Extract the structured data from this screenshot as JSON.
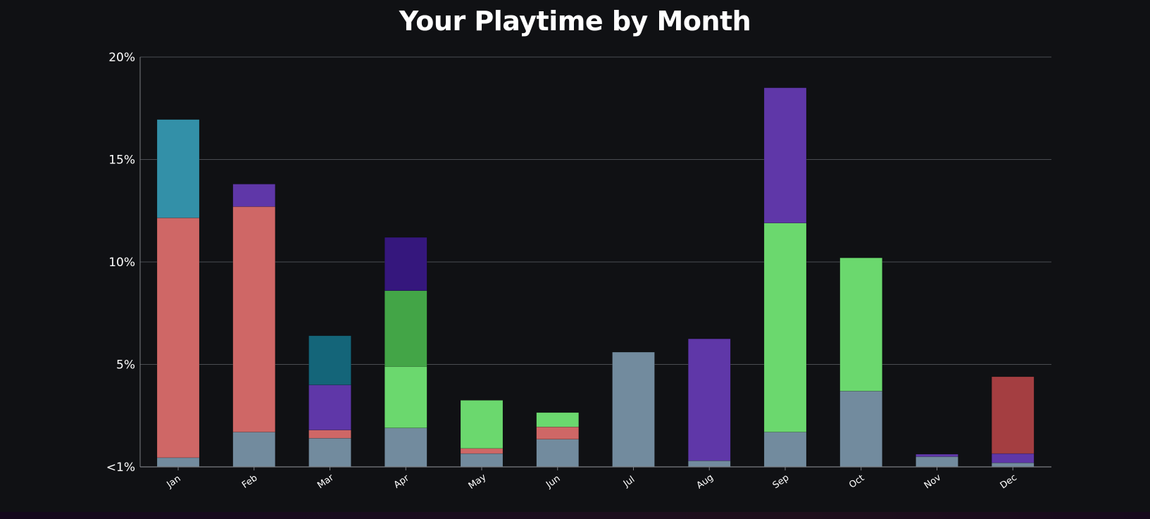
{
  "chart_data": {
    "type": "bar",
    "stacked": true,
    "title": "Your Playtime by Month",
    "xlabel": "",
    "ylabel": "",
    "ylim": [
      0,
      20
    ],
    "y_ticks": [
      {
        "value": 0,
        "label": "<1%"
      },
      {
        "value": 5,
        "label": "5%"
      },
      {
        "value": 10,
        "label": "10%"
      },
      {
        "value": 15,
        "label": "15%"
      },
      {
        "value": 20,
        "label": "20%"
      }
    ],
    "grid": true,
    "legend": "none",
    "categories": [
      "Jan",
      "Feb",
      "Mar",
      "Apr",
      "May",
      "Jun",
      "Jul",
      "Aug",
      "Sep",
      "Oct",
      "Nov",
      "Dec"
    ],
    "stacks": [
      [
        {
          "value": 0.45,
          "color": "#728b9e"
        },
        {
          "value": 11.7,
          "color": "#cf6766"
        },
        {
          "value": 4.8,
          "color": "#3390a8"
        }
      ],
      [
        {
          "value": 1.7,
          "color": "#728b9e"
        },
        {
          "value": 11.0,
          "color": "#cf6766"
        },
        {
          "value": 1.1,
          "color": "#5f37a8"
        }
      ],
      [
        {
          "value": 1.4,
          "color": "#728b9e"
        },
        {
          "value": 0.4,
          "color": "#cf6766"
        },
        {
          "value": 2.2,
          "color": "#5f37a8"
        },
        {
          "value": 2.4,
          "color": "#146579"
        }
      ],
      [
        {
          "value": 1.9,
          "color": "#728b9e"
        },
        {
          "value": 3.0,
          "color": "#6bd86e"
        },
        {
          "value": 3.7,
          "color": "#43a547"
        },
        {
          "value": 2.6,
          "color": "#35177d"
        }
      ],
      [
        {
          "value": 0.65,
          "color": "#728b9e"
        },
        {
          "value": 0.25,
          "color": "#cf6766"
        },
        {
          "value": 2.35,
          "color": "#6bd86e"
        }
      ],
      [
        {
          "value": 1.35,
          "color": "#728b9e"
        },
        {
          "value": 0.6,
          "color": "#cf6766"
        },
        {
          "value": 0.7,
          "color": "#6bd86e"
        }
      ],
      [
        {
          "value": 5.6,
          "color": "#728b9e"
        }
      ],
      [
        {
          "value": 0.3,
          "color": "#728b9e"
        },
        {
          "value": 5.95,
          "color": "#5f37a8"
        }
      ],
      [
        {
          "value": 1.7,
          "color": "#728b9e"
        },
        {
          "value": 10.2,
          "color": "#6bd86e"
        },
        {
          "value": 6.6,
          "color": "#5f37a8"
        }
      ],
      [
        {
          "value": 3.7,
          "color": "#728b9e"
        },
        {
          "value": 6.5,
          "color": "#6bd86e"
        }
      ],
      [
        {
          "value": 0.5,
          "color": "#728b9e"
        },
        {
          "value": 0.12,
          "color": "#5f37a8"
        }
      ],
      [
        {
          "value": 0.2,
          "color": "#728b9e"
        },
        {
          "value": 0.45,
          "color": "#5f37a8"
        },
        {
          "value": 3.75,
          "color": "#a43e41"
        }
      ]
    ]
  },
  "colors": {
    "background": "#101114",
    "gridline": "#4a4d52",
    "axis": "#7a7d82",
    "text": "#ffffff"
  }
}
